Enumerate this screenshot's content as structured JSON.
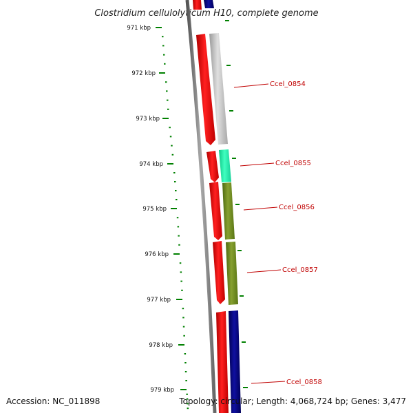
{
  "title": "Clostridium cellulolyticum H10, complete genome",
  "accession": "Accession: NC_011898",
  "summary": "Topology: circular; Length: 4,068,724 bp; Genes: 3,477",
  "ruler": [
    {
      "label": "971 kbp"
    },
    {
      "label": "972 kbp"
    },
    {
      "label": "973 kbp"
    },
    {
      "label": "974 kbp"
    },
    {
      "label": "975 kbp"
    },
    {
      "label": "976 kbp"
    },
    {
      "label": "977 kbp"
    },
    {
      "label": "978 kbp"
    },
    {
      "label": "979 kbp"
    }
  ],
  "genes": [
    {
      "label": "Ccel_0854",
      "color": "#c0c0c0"
    },
    {
      "label": "Ccel_0855",
      "color": "#22f0a8"
    },
    {
      "label": "Ccel_0856",
      "color": "#6e8c1e"
    },
    {
      "label": "Ccel_0857",
      "color": "#6e8c1e"
    },
    {
      "label": "Ccel_0858",
      "color": "#00007a"
    }
  ],
  "colors": {
    "cds": "#ff0000",
    "backbone": "#808080",
    "ticks": "#008000",
    "label": "#c00000"
  }
}
